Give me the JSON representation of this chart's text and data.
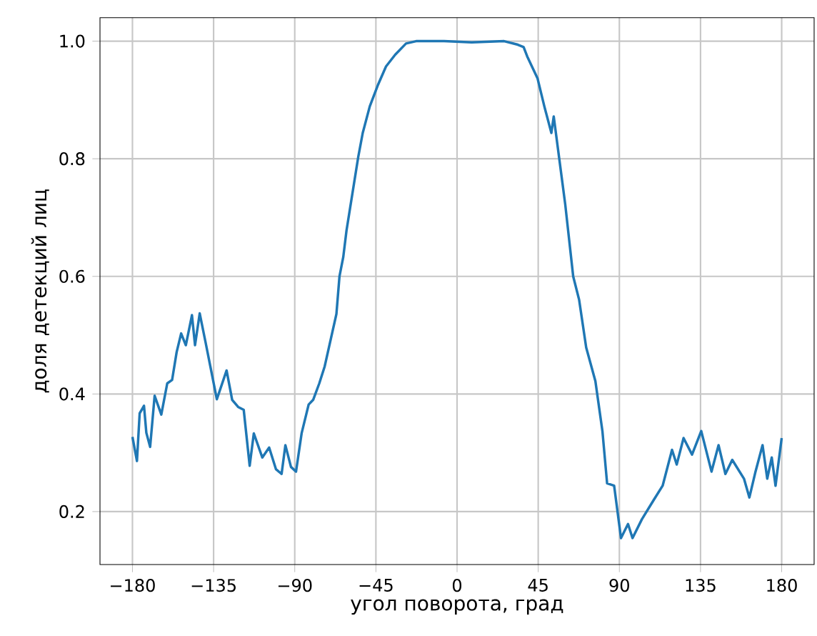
{
  "chart_data": {
    "type": "line",
    "xlabel": "угол поворота, град",
    "ylabel": "доля детекций лиц",
    "x": [
      -180,
      -177.5,
      -176,
      -173.6,
      -172.3,
      -170.2,
      -167.7,
      -164,
      -160.7,
      -158,
      -155.5,
      -153,
      -150.4,
      -147,
      -145.3,
      -142.7,
      -139.4,
      -133.2,
      -127.8,
      -124.7,
      -121.4,
      -118.3,
      -115,
      -112.7,
      -108,
      -104.2,
      -100.4,
      -97.3,
      -95.2,
      -92.1,
      -89.3,
      -86.2,
      -82.3,
      -79.8,
      -76.4,
      -73.4,
      -66.9,
      -65.2,
      -63.1,
      -61.3,
      -54.8,
      -52.3,
      -48.4,
      -43.8,
      -39.4,
      -34.3,
      -28.3,
      -22.7,
      -7.2,
      8.1,
      26.1,
      33.7,
      36.9,
      38.9,
      44.6,
      48.4,
      52.3,
      53.6,
      60,
      64.4,
      67.7,
      71.6,
      76.7,
      80.6,
      83.2,
      87.1,
      90.9,
      94.8,
      97.3,
      102.5,
      108.9,
      114,
      119.2,
      121.8,
      125.6,
      130.3,
      135.4,
      141.1,
      145,
      148.8,
      152.6,
      159.1,
      162.1,
      165.5,
      169.4,
      172,
      174.5,
      176.6,
      180
    ],
    "series": [
      {
        "color": "#1f77b4",
        "values": [
          0.327,
          0.286,
          0.367,
          0.38,
          0.334,
          0.31,
          0.397,
          0.365,
          0.418,
          0.424,
          0.471,
          0.503,
          0.483,
          0.534,
          0.483,
          0.537,
          0.487,
          0.391,
          0.44,
          0.39,
          0.378,
          0.373,
          0.278,
          0.333,
          0.292,
          0.309,
          0.272,
          0.264,
          0.313,
          0.276,
          0.268,
          0.333,
          0.382,
          0.39,
          0.418,
          0.447,
          0.536,
          0.6,
          0.633,
          0.678,
          0.803,
          0.844,
          0.889,
          0.926,
          0.957,
          0.977,
          0.996,
          1.0,
          1.0,
          0.998,
          1.0,
          0.994,
          0.99,
          0.974,
          0.937,
          0.889,
          0.844,
          0.872,
          0.722,
          0.6,
          0.56,
          0.479,
          0.422,
          0.337,
          0.248,
          0.244,
          0.155,
          0.179,
          0.155,
          0.187,
          0.219,
          0.244,
          0.305,
          0.28,
          0.325,
          0.297,
          0.337,
          0.268,
          0.313,
          0.264,
          0.288,
          0.256,
          0.224,
          0.268,
          0.313,
          0.256,
          0.292,
          0.244,
          0.325
        ]
      }
    ],
    "xlim": [
      -198,
      198
    ],
    "ylim": [
      0.11,
      1.04
    ],
    "xticks": [
      {
        "value": -180,
        "label": "−180"
      },
      {
        "value": -135,
        "label": "−135"
      },
      {
        "value": -90,
        "label": "−90"
      },
      {
        "value": -45,
        "label": "−45"
      },
      0,
      45,
      90,
      135,
      180
    ],
    "yticks": [
      0.2,
      0.4,
      0.6,
      0.8,
      {
        "value": 1.0,
        "label": "1.0"
      }
    ],
    "grid": true
  }
}
